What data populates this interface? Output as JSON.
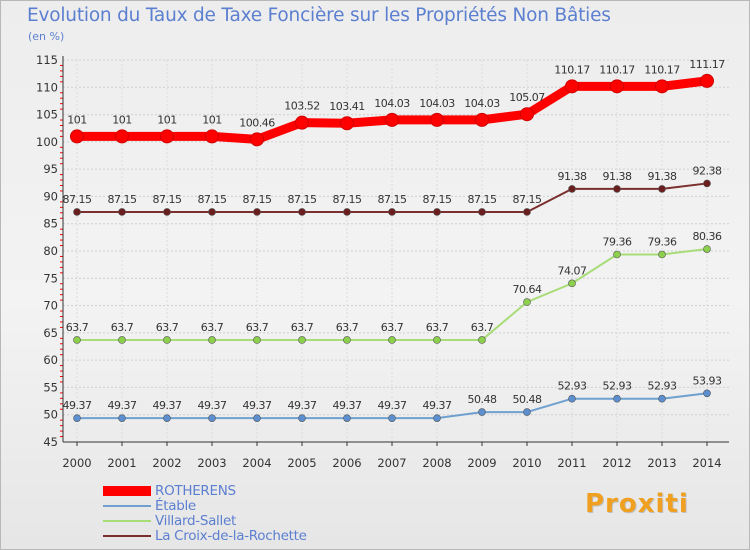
{
  "title": "Evolution du Taux de Taxe Foncière sur les Propriétés Non Bâties",
  "subtitle": "(en %)",
  "logo_text": "Proxiti",
  "colors": {
    "title": "#5c7fd0",
    "axis": "#333333",
    "grid": "#d0d0d0",
    "tick_red": "#ff0000"
  },
  "chart_data": {
    "type": "line",
    "title": "Evolution du Taux de Taxe Foncière sur les Propriétés Non Bâties",
    "ylabel": "(en %)",
    "xlabel": "",
    "ylim": [
      45,
      115
    ],
    "yticks": [
      45,
      50,
      55,
      60,
      65,
      70,
      75,
      80,
      85,
      90,
      95,
      100,
      105,
      110,
      115
    ],
    "grid": true,
    "legend_position": "bottom-left",
    "x": [
      "2000",
      "2001",
      "2002",
      "2003",
      "2004",
      "2005",
      "2006",
      "2007",
      "2008",
      "2009",
      "2010",
      "2011",
      "2012",
      "2013",
      "2014"
    ],
    "series": [
      {
        "name": "ROTHERENS",
        "color": "#ff0000",
        "marker": "#ff0000",
        "thick": true,
        "values": [
          101,
          101,
          101,
          101,
          100.46,
          103.52,
          103.41,
          104.03,
          104.03,
          104.03,
          105.07,
          110.17,
          110.17,
          110.17,
          111.17
        ],
        "labels": [
          "101",
          "101",
          "101",
          "101",
          "100.46",
          "103.52",
          "103.41",
          "104.03",
          "104.03",
          "104.03",
          "105.07",
          "110.17",
          "110.17",
          "110.17",
          "111.17"
        ]
      },
      {
        "name": "Étable",
        "color": "#6ea0d0",
        "marker": "#5b8fd0",
        "thick": false,
        "values": [
          49.37,
          49.37,
          49.37,
          49.37,
          49.37,
          49.37,
          49.37,
          49.37,
          49.37,
          50.48,
          50.48,
          52.93,
          52.93,
          52.93,
          53.93
        ],
        "labels": [
          "49.37",
          "49.37",
          "49.37",
          "49.37",
          "49.37",
          "49.37",
          "49.37",
          "49.37",
          "49.37",
          "50.48",
          "50.48",
          "52.93",
          "52.93",
          "52.93",
          "53.93"
        ]
      },
      {
        "name": "Villard-Sallet",
        "color": "#a8dc78",
        "marker": "#8cd04c",
        "thick": false,
        "values": [
          63.7,
          63.7,
          63.7,
          63.7,
          63.7,
          63.7,
          63.7,
          63.7,
          63.7,
          63.7,
          70.64,
          74.07,
          79.36,
          79.36,
          80.36
        ],
        "labels": [
          "63.7",
          "63.7",
          "63.7",
          "63.7",
          "63.7",
          "63.7",
          "63.7",
          "63.7",
          "63.7",
          "63.7",
          "70.64",
          "74.07",
          "79.36",
          "79.36",
          "80.36"
        ]
      },
      {
        "name": "La Croix-de-la-Rochette",
        "color": "#7a2e2e",
        "marker": "#6a1e1e",
        "thick": false,
        "values": [
          87.15,
          87.15,
          87.15,
          87.15,
          87.15,
          87.15,
          87.15,
          87.15,
          87.15,
          87.15,
          87.15,
          91.38,
          91.38,
          91.38,
          92.38
        ],
        "labels": [
          "87.15",
          "87.15",
          "87.15",
          "87.15",
          "87.15",
          "87.15",
          "87.15",
          "87.15",
          "87.15",
          "87.15",
          "87.15",
          "91.38",
          "91.38",
          "91.38",
          "92.38"
        ]
      }
    ]
  }
}
